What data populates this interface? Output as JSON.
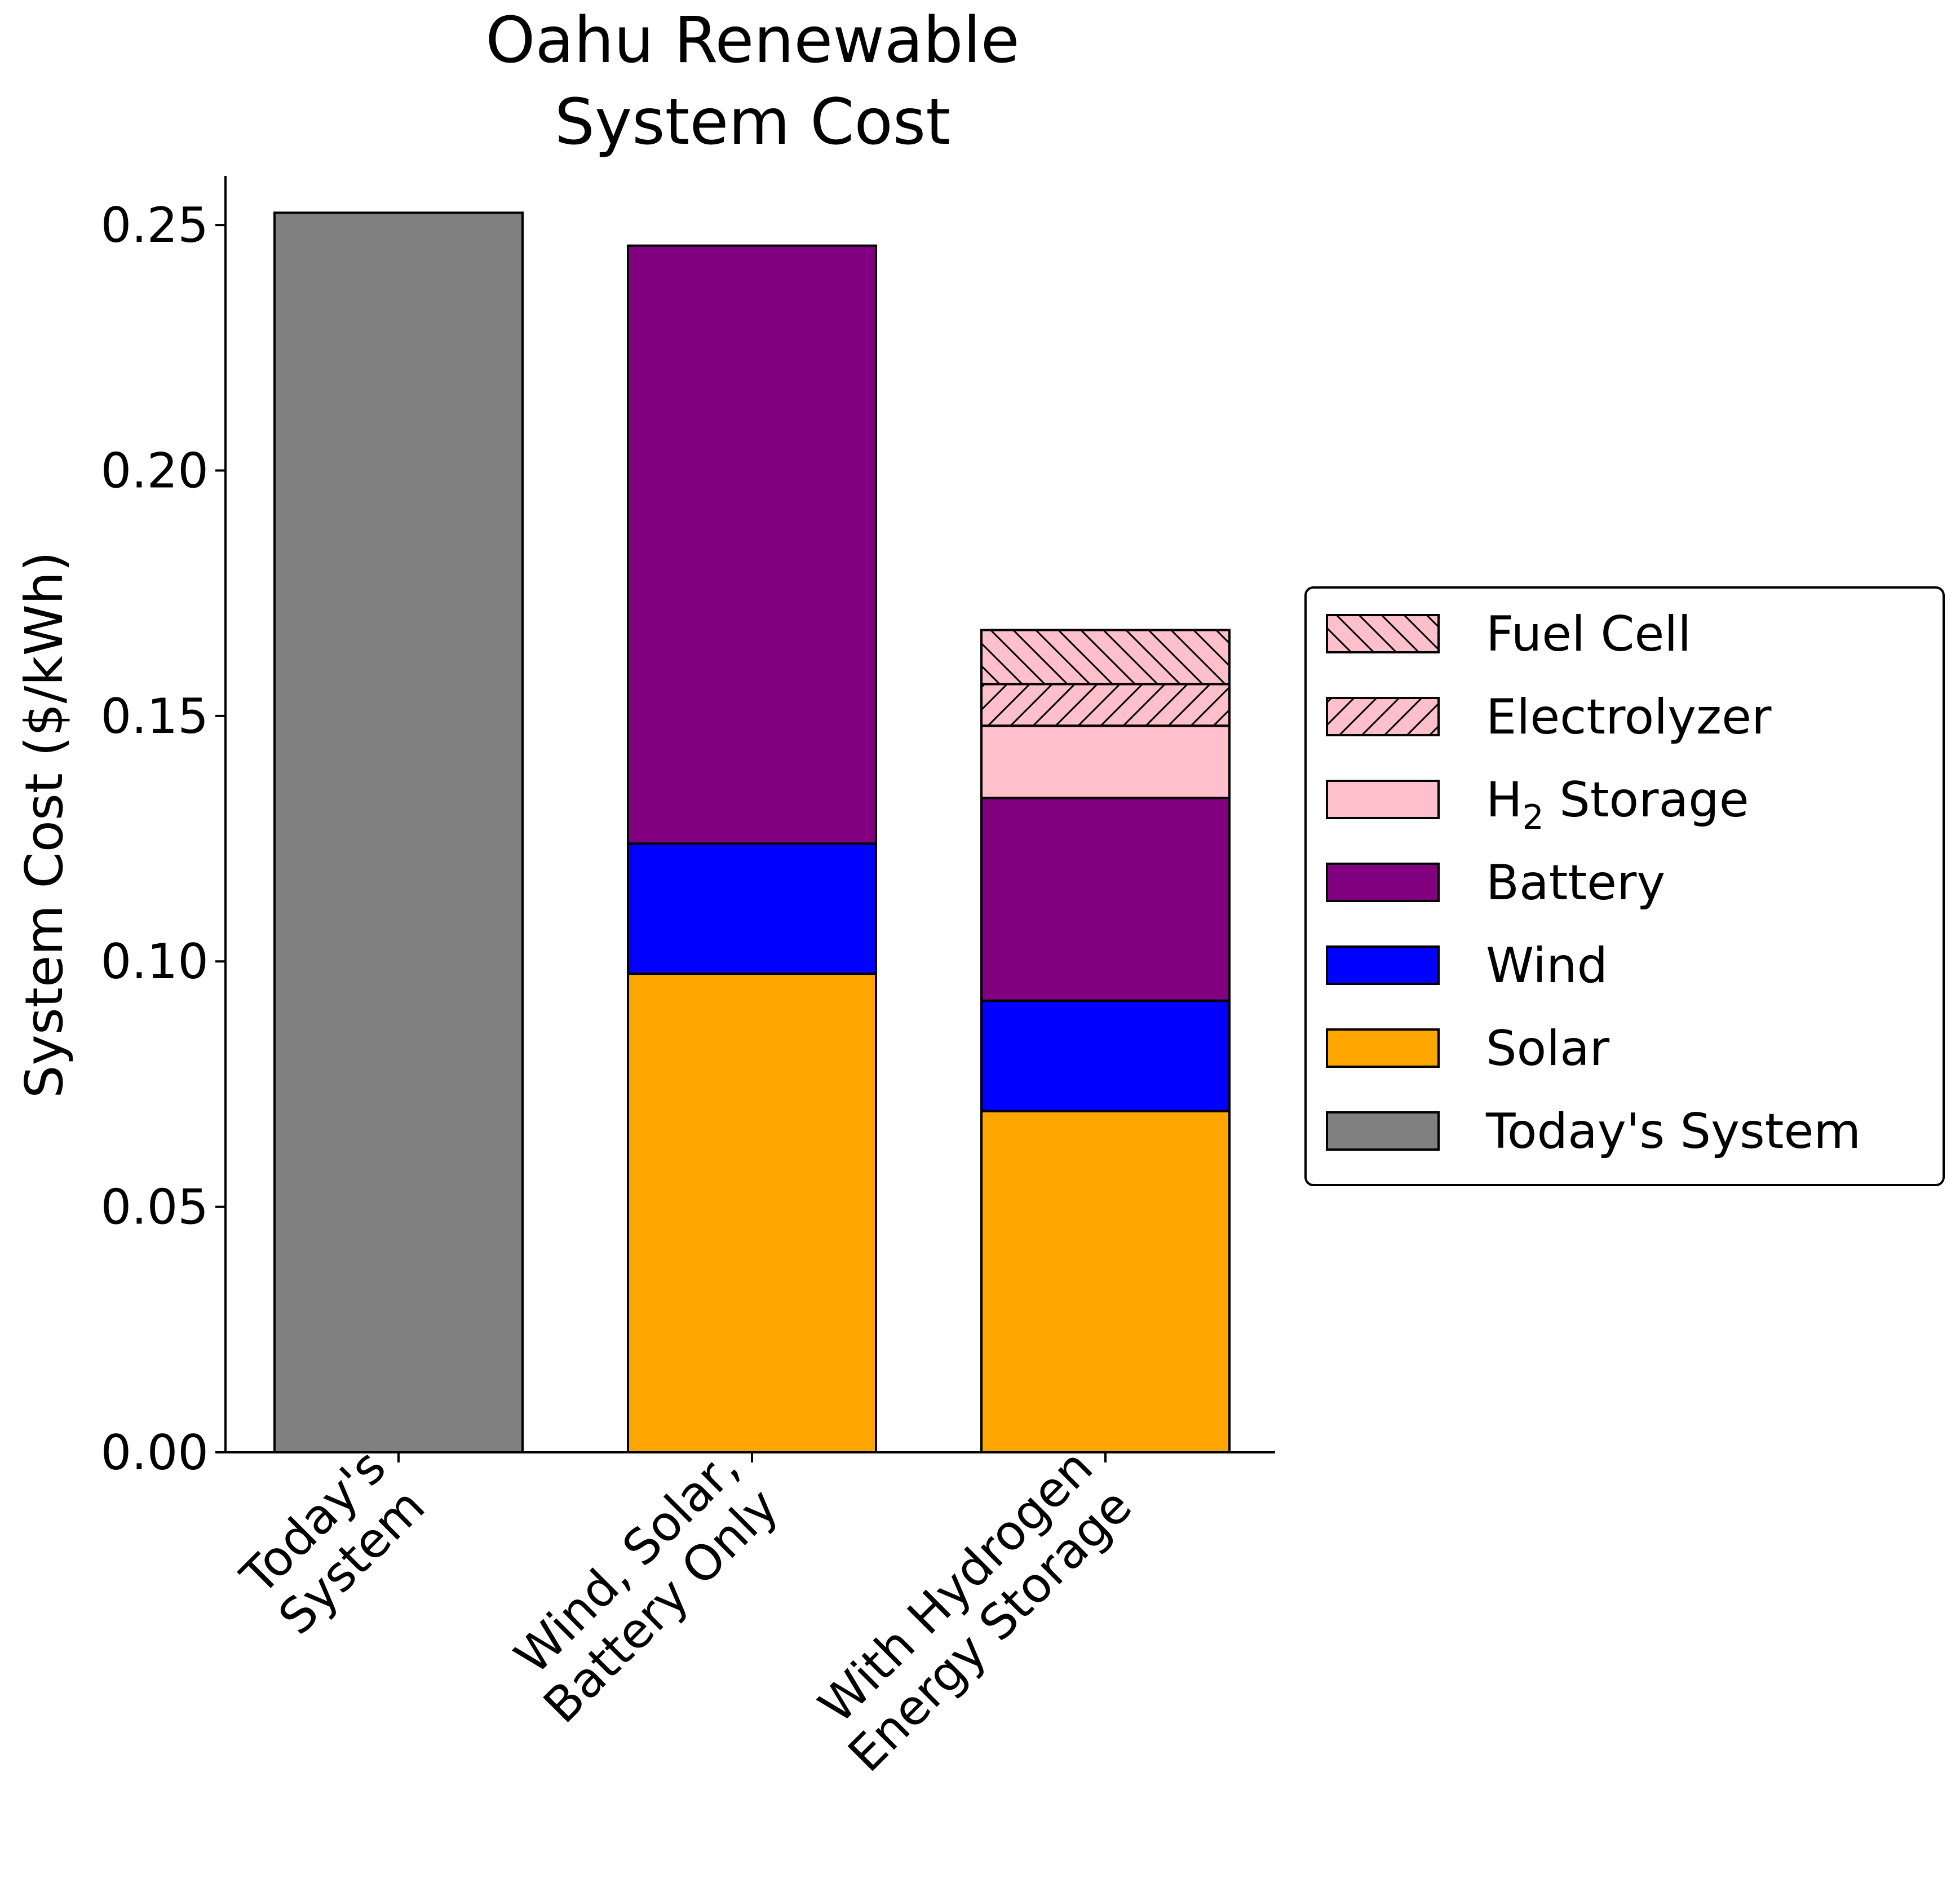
{
  "chart_data": {
    "type": "bar",
    "stacked": true,
    "title_lines": [
      "Oahu Renewable",
      "System Cost"
    ],
    "xlabel": "",
    "ylabel": "System Cost ($/kWh)",
    "ylim": [
      0,
      0.26
    ],
    "yticks": [
      "0.00",
      "0.05",
      "0.10",
      "0.15",
      "0.20",
      "0.25"
    ],
    "grid": false,
    "legend_position": "right",
    "categories": [
      [
        "Today's",
        "System"
      ],
      [
        "Wind, Solar,",
        "Battery Only"
      ],
      [
        "With Hydrogen",
        "Energy Storage"
      ]
    ],
    "series": [
      {
        "key": "todays",
        "name": "Today's System",
        "color": "#808080",
        "hatch": "none",
        "values": [
          0.2525,
          0,
          0
        ]
      },
      {
        "key": "solar",
        "name": "Solar",
        "color": "#FFA500",
        "hatch": "none",
        "values": [
          0,
          0.0975,
          0.0695
        ]
      },
      {
        "key": "wind",
        "name": "Wind",
        "color": "#0000FF",
        "hatch": "none",
        "values": [
          0,
          0.0265,
          0.0225
        ]
      },
      {
        "key": "battery",
        "name": "Battery",
        "color": "#800080",
        "hatch": "none",
        "values": [
          0,
          0.1218,
          0.0413
        ]
      },
      {
        "key": "h2storage",
        "name": "H",
        "name_sub": "2",
        "name_rest": " Storage",
        "color": "#FFC0CB",
        "hatch": "none",
        "values": [
          0,
          0,
          0.0147
        ]
      },
      {
        "key": "electrolyzer",
        "name": "Electrolyzer",
        "color": "#FFC0CB",
        "hatch": "forward",
        "values": [
          0,
          0,
          0.0085
        ]
      },
      {
        "key": "fuelcell",
        "name": "Fuel Cell",
        "color": "#FFC0CB",
        "hatch": "back",
        "values": [
          0,
          0,
          0.011
        ]
      }
    ],
    "legend_order": [
      "fuelcell",
      "electrolyzer",
      "h2storage",
      "battery",
      "wind",
      "solar",
      "todays"
    ]
  }
}
